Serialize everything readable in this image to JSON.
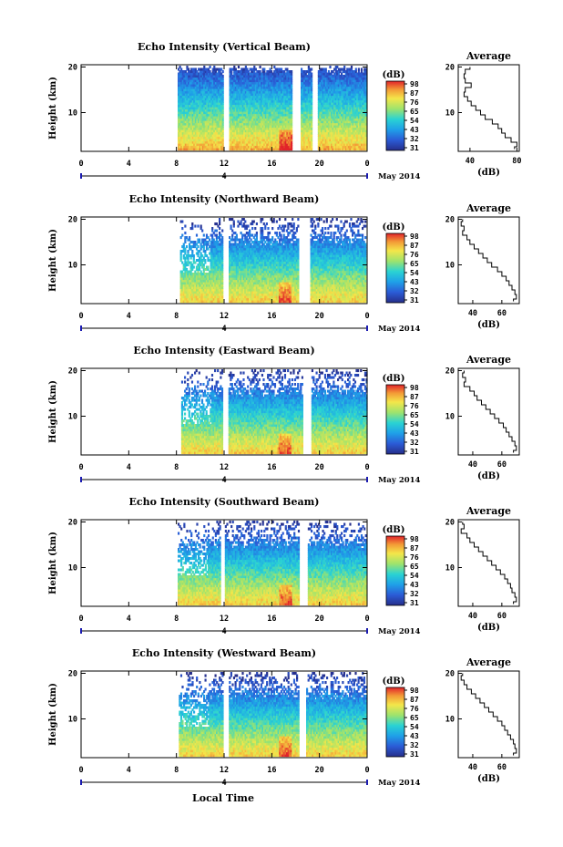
{
  "chart_data": {
    "type": "heatmap",
    "date_label": "May 2014",
    "xlabel": "Local Time",
    "ylabel": "Height (km)",
    "colorbar_label": "(dB)",
    "colorbar_ticks": [
      "31",
      "32",
      "43",
      "54",
      "65",
      "76",
      "87",
      "98"
    ],
    "x_ticks": [
      "0",
      "4",
      "8",
      "12",
      "16",
      "20",
      "0"
    ],
    "y_ticks": [
      "10",
      "20"
    ],
    "xlim": [
      0,
      24
    ],
    "ylim": [
      1.5,
      20.5
    ],
    "day_marker": "4",
    "profile_title": "Average",
    "profile_xlabel": "(dB)",
    "panels": [
      {
        "title": "Echo Intensity (Vertical Beam)",
        "colorbar_ticks": [
          "31",
          "32",
          "43",
          "54",
          "65",
          "76",
          "87",
          "98"
        ],
        "profile_ticks": [
          "40",
          "80"
        ],
        "profile_xlim": [
          30,
          82
        ],
        "data_start_hour": 8.1,
        "gaps": [
          [
            11.9,
            12.4
          ],
          [
            17.6,
            18.3
          ],
          [
            19.3,
            19.8
          ]
        ],
        "profile": [
          [
            40,
            20
          ],
          [
            36,
            19
          ],
          [
            35,
            18
          ],
          [
            36,
            17
          ],
          [
            41,
            16
          ],
          [
            36,
            15
          ],
          [
            35,
            14
          ],
          [
            38,
            13
          ],
          [
            41,
            12
          ],
          [
            45,
            11
          ],
          [
            49,
            10
          ],
          [
            53,
            9
          ],
          [
            59,
            8
          ],
          [
            64,
            7
          ],
          [
            67,
            6
          ],
          [
            70,
            5
          ],
          [
            75,
            4
          ],
          [
            80,
            3
          ],
          [
            78,
            2
          ]
        ]
      },
      {
        "title": "Echo Intensity (Northward Beam)",
        "colorbar_ticks": [
          "31",
          "32",
          "43",
          "54",
          "65",
          "76",
          "87",
          "98"
        ],
        "profile_ticks": [
          "40",
          "60"
        ],
        "profile_xlim": [
          30,
          72
        ],
        "data_start_hour": 8.3,
        "gaps": [
          [
            11.8,
            12.3
          ],
          [
            18.2,
            19.1
          ]
        ],
        "profile": [
          [
            33,
            20
          ],
          [
            32,
            19
          ],
          [
            34,
            18
          ],
          [
            33,
            17
          ],
          [
            36,
            16
          ],
          [
            38,
            15
          ],
          [
            41,
            14
          ],
          [
            44,
            13
          ],
          [
            47,
            12
          ],
          [
            50,
            11
          ],
          [
            53,
            10
          ],
          [
            57,
            9
          ],
          [
            60,
            8
          ],
          [
            63,
            7
          ],
          [
            65,
            6
          ],
          [
            67,
            5
          ],
          [
            69,
            4
          ],
          [
            70,
            3
          ],
          [
            68,
            2
          ]
        ]
      },
      {
        "title": "Echo Intensity (Eastward Beam)",
        "colorbar_ticks": [
          "31",
          "32",
          "43",
          "54",
          "65",
          "76",
          "87",
          "98"
        ],
        "profile_ticks": [
          "40",
          "60"
        ],
        "profile_xlim": [
          30,
          72
        ],
        "data_start_hour": 8.4,
        "gaps": [
          [
            11.8,
            12.3
          ],
          [
            18.5,
            19.2
          ]
        ],
        "profile": [
          [
            34,
            20
          ],
          [
            33,
            19
          ],
          [
            35,
            18
          ],
          [
            34,
            17
          ],
          [
            38,
            16
          ],
          [
            41,
            15
          ],
          [
            43,
            14
          ],
          [
            46,
            13
          ],
          [
            49,
            12
          ],
          [
            52,
            11
          ],
          [
            55,
            10
          ],
          [
            58,
            9
          ],
          [
            61,
            8
          ],
          [
            63,
            7
          ],
          [
            65,
            6
          ],
          [
            67,
            5
          ],
          [
            69,
            4
          ],
          [
            70,
            3
          ],
          [
            68,
            2
          ]
        ]
      },
      {
        "title": "Echo Intensity (Southward Beam)",
        "colorbar_ticks": [
          "31",
          "32",
          "43",
          "54",
          "65",
          "76",
          "87",
          "98"
        ],
        "profile_ticks": [
          "40",
          "60"
        ],
        "profile_xlim": [
          30,
          72
        ],
        "data_start_hour": 8.1,
        "gaps": [
          [
            11.6,
            12.0
          ],
          [
            18.2,
            19.0
          ]
        ],
        "profile": [
          [
            33,
            20
          ],
          [
            34,
            19
          ],
          [
            32,
            18
          ],
          [
            36,
            17
          ],
          [
            38,
            16
          ],
          [
            41,
            15
          ],
          [
            44,
            14
          ],
          [
            47,
            13
          ],
          [
            50,
            12
          ],
          [
            53,
            11
          ],
          [
            56,
            10
          ],
          [
            59,
            9
          ],
          [
            62,
            8
          ],
          [
            64,
            7
          ],
          [
            66,
            6
          ],
          [
            67,
            5
          ],
          [
            69,
            4
          ],
          [
            70,
            3
          ],
          [
            68,
            2
          ]
        ]
      },
      {
        "title": "Echo Intensity (Westward Beam)",
        "colorbar_ticks": [
          "31",
          "32",
          "43",
          "54",
          "65",
          "76",
          "87",
          "98"
        ],
        "profile_ticks": [
          "40",
          "60"
        ],
        "profile_xlim": [
          30,
          72
        ],
        "data_start_hour": 8.2,
        "gaps": [
          [
            11.8,
            12.3
          ],
          [
            18.2,
            18.8
          ]
        ],
        "profile": [
          [
            33,
            20
          ],
          [
            32,
            19
          ],
          [
            34,
            18
          ],
          [
            36,
            17
          ],
          [
            39,
            16
          ],
          [
            42,
            15
          ],
          [
            45,
            14
          ],
          [
            48,
            13
          ],
          [
            51,
            12
          ],
          [
            54,
            11
          ],
          [
            57,
            10
          ],
          [
            60,
            9
          ],
          [
            62,
            8
          ],
          [
            64,
            7
          ],
          [
            66,
            6
          ],
          [
            68,
            5
          ],
          [
            69,
            4
          ],
          [
            70,
            3
          ],
          [
            68,
            2
          ]
        ]
      }
    ]
  }
}
